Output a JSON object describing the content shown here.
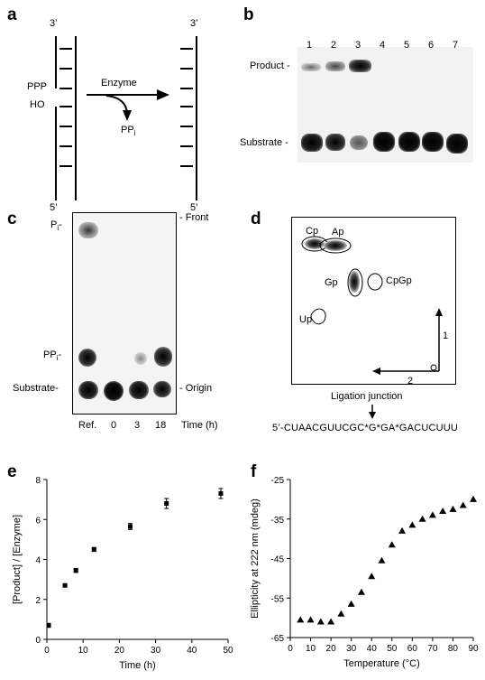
{
  "panels": {
    "a": {
      "label": "a",
      "left_top": "3’",
      "left_bottom": "5’",
      "right_top": "3’",
      "right_bottom": "5’",
      "ppp": "PPP",
      "ho": "HO",
      "enzyme": "Enzyme",
      "ppi_main": "PP",
      "ppi_sub": "i"
    },
    "b": {
      "label": "b",
      "lanes": [
        "1",
        "2",
        "3",
        "4",
        "5",
        "6",
        "7"
      ],
      "product": "Product -",
      "substrate": "Substrate -"
    },
    "c": {
      "label": "c",
      "pi_main": "P",
      "pi_sub": "i",
      "pi_dash": "-",
      "ppi_main": "PP",
      "ppi_sub": "i",
      "ppi_dash": "-",
      "substrate": "Substrate-",
      "front": "- Front",
      "origin": "- Origin",
      "lanes": [
        "Ref.",
        "0",
        "3",
        "18"
      ],
      "time": "Time (h)"
    },
    "d": {
      "label": "d",
      "cp": "Cp",
      "ap": "Ap",
      "gp": "Gp",
      "cpgp": "CpGp",
      "up": "Up",
      "dim1": "1",
      "dim2": "2",
      "junction": "Ligation junction",
      "sequence": "5’-CUAACGUUCGC*G*GA*GACUCUUU"
    },
    "e": {
      "label": "e"
    },
    "f": {
      "label": "f"
    }
  },
  "chart_data": [
    {
      "type": "scatter",
      "panel": "e",
      "xlabel": "Time (h)",
      "ylabel": "[Product] / [Enzyme]",
      "xlim": [
        0,
        50
      ],
      "ylim": [
        0,
        8
      ],
      "xticks": [
        "0",
        "10",
        "20",
        "30",
        "40",
        "50"
      ],
      "yticks": [
        "0",
        "2",
        "4",
        "6",
        "8"
      ],
      "error_bars": true,
      "x": [
        0.5,
        5,
        8,
        13,
        23,
        33,
        48
      ],
      "values": [
        0.7,
        2.7,
        3.45,
        4.5,
        5.65,
        6.8,
        7.3
      ],
      "errors": [
        0.1,
        0.05,
        0.1,
        0.1,
        0.15,
        0.25,
        0.25
      ]
    },
    {
      "type": "scatter",
      "panel": "f",
      "xlabel": "Temperature (°C)",
      "ylabel": "Ellipticity at 222 nm (mdeg)",
      "xlim": [
        0,
        90
      ],
      "ylim": [
        -65,
        -25
      ],
      "xticks": [
        "0",
        "10",
        "20",
        "30",
        "40",
        "50",
        "60",
        "70",
        "80",
        "90"
      ],
      "yticks": [
        "-25",
        "-35",
        "-45",
        "-55",
        "-65"
      ],
      "marker": "triangle",
      "x": [
        5,
        10,
        15,
        20,
        25,
        30,
        35,
        40,
        45,
        50,
        55,
        60,
        65,
        70,
        75,
        80,
        85,
        90
      ],
      "values": [
        -60.5,
        -60.5,
        -61,
        -61,
        -59,
        -56.5,
        -53.5,
        -49.5,
        -45.5,
        -41.5,
        -38,
        -36.5,
        -35,
        -34,
        -33,
        -32.5,
        -31.5,
        -30
      ]
    }
  ]
}
